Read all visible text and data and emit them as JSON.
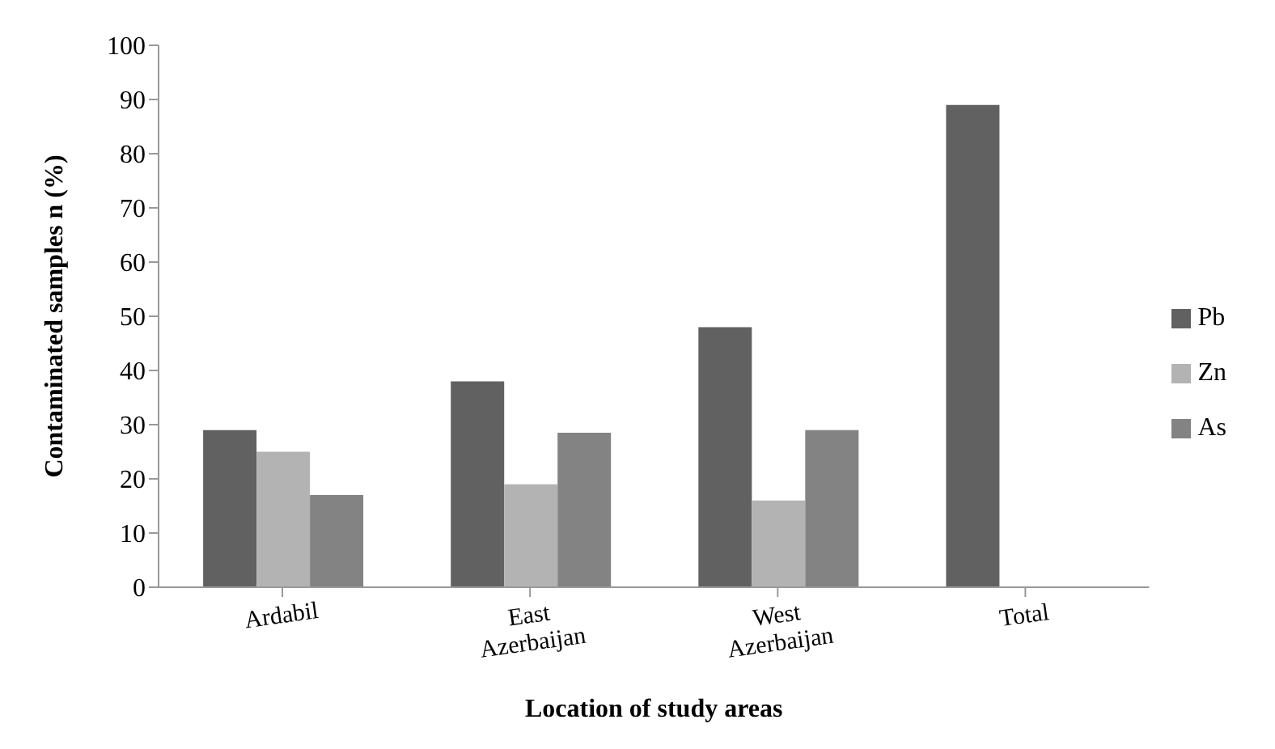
{
  "chart_data": {
    "type": "bar",
    "xlabel": "Location of study areas",
    "ylabel": "Contaminated samples n (%)",
    "categories": [
      "Ardabil",
      "East Azerbaijan",
      "West Azerbaijan",
      "Total"
    ],
    "series": [
      {
        "name": "Pb",
        "color": "#616161",
        "values": [
          29,
          38,
          48,
          89
        ]
      },
      {
        "name": "Zn",
        "color": "#b3b3b3",
        "values": [
          25,
          19,
          16,
          null
        ]
      },
      {
        "name": "As",
        "color": "#838383",
        "values": [
          17,
          28.5,
          29,
          null
        ]
      }
    ],
    "ylim": [
      0,
      100
    ],
    "yticks": [
      0,
      10,
      20,
      30,
      40,
      50,
      60,
      70,
      80,
      90,
      100
    ],
    "grid": false,
    "legend": "right"
  }
}
